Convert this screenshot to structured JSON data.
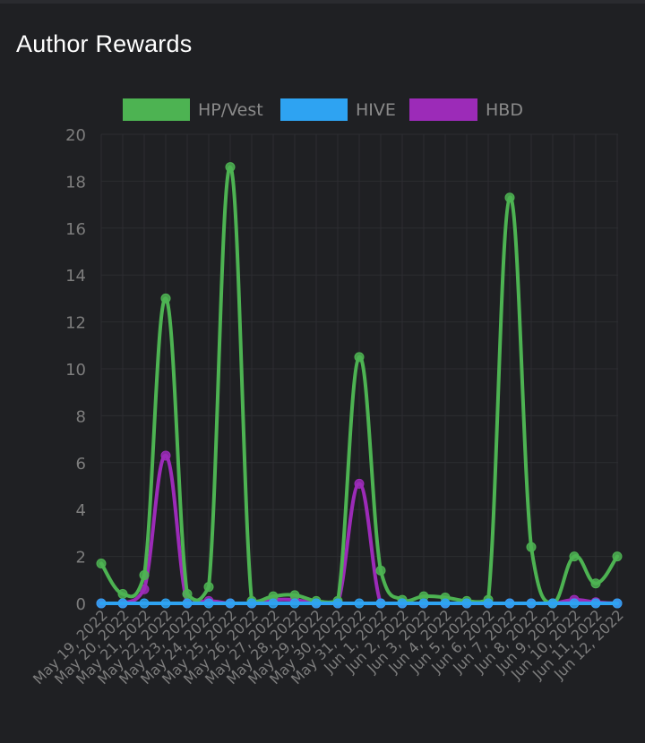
{
  "panel": {
    "title": "Author Rewards"
  },
  "chart_data": {
    "type": "line",
    "title": "Author Rewards",
    "xlabel": "",
    "ylabel": "",
    "ylim": [
      0,
      20
    ],
    "yticks": [
      0,
      2,
      4,
      6,
      8,
      10,
      12,
      14,
      16,
      18,
      20
    ],
    "grid": true,
    "legend_position": "top",
    "categories": [
      "May 19, 2022",
      "May 20, 2022",
      "May 21, 2022",
      "May 22, 2022",
      "May 23, 2022",
      "May 24, 2022",
      "May 25, 2022",
      "May 26, 2022",
      "May 27, 2022",
      "May 28, 2022",
      "May 29, 2022",
      "May 30, 2022",
      "May 31, 2022",
      "Jun 1, 2022",
      "Jun 2, 2022",
      "Jun 3, 2022",
      "Jun 4, 2022",
      "Jun 5, 2022",
      "Jun 6, 2022",
      "Jun 7, 2022",
      "Jun 8, 2022",
      "Jun 9, 2022",
      "Jun 10, 2022",
      "Jun 11, 2022",
      "Jun 12, 2022"
    ],
    "series": [
      {
        "name": "HP/Vest",
        "color": "#4db352",
        "values": [
          1.7,
          0.4,
          1.2,
          13.0,
          0.4,
          0.7,
          18.6,
          0.1,
          0.3,
          0.35,
          0.1,
          0.1,
          10.5,
          1.4,
          0.15,
          0.3,
          0.25,
          0.1,
          0.15,
          17.3,
          2.4,
          0.0,
          2.0,
          0.85,
          2.0
        ]
      },
      {
        "name": "HIVE",
        "color": "#2ea3f2",
        "values": [
          0,
          0,
          0,
          0,
          0,
          0,
          0,
          0,
          0,
          0,
          0,
          0,
          0,
          0,
          0,
          0,
          0,
          0,
          0,
          0,
          0,
          0,
          0,
          0,
          0
        ]
      },
      {
        "name": "HBD",
        "color": "#9c2bb8",
        "values": [
          0,
          0,
          0.6,
          6.3,
          0,
          0.1,
          0,
          0,
          0.15,
          0.15,
          0,
          0,
          5.1,
          0,
          0,
          0,
          0,
          0,
          0,
          0,
          0,
          0,
          0.15,
          0.05,
          0
        ]
      }
    ]
  }
}
